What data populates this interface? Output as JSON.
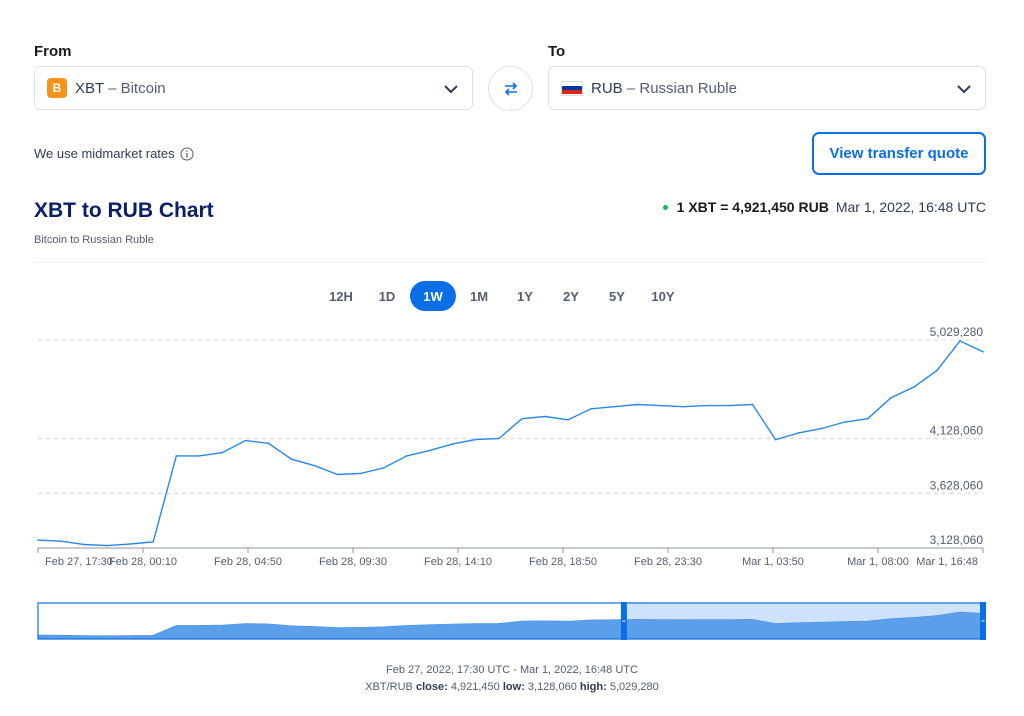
{
  "converter": {
    "from_label": "From",
    "to_label": "To",
    "from": {
      "code": "XBT",
      "name": "Bitcoin",
      "icon": "bitcoin-icon",
      "icon_glyph": "B"
    },
    "to": {
      "code": "RUB",
      "name": "Russian Ruble",
      "icon": "russia-flag-icon"
    },
    "separator": " – "
  },
  "midmarket_text": "We use midmarket rates",
  "quote_button": "View transfer quote",
  "header": {
    "title": "XBT to RUB Chart",
    "subtitle": "Bitcoin to Russian Ruble",
    "rate": "1 XBT = 4,921,450 RUB",
    "rate_time": "Mar 1, 2022, 16:48 UTC"
  },
  "ranges": [
    "12H",
    "1D",
    "1W",
    "1M",
    "1Y",
    "2Y",
    "5Y",
    "10Y"
  ],
  "active_range": "1W",
  "colors": {
    "accent": "#0a6fe6",
    "line": "#2b87ea",
    "live_dot": "#0cb953",
    "coin": "#f7931a"
  },
  "chart_data": {
    "type": "line",
    "series": [
      {
        "x": [
          "Feb 27, 17:30",
          "Feb 27, 20:00",
          "Feb 27, 22:00",
          "Feb 28, 00:10",
          "Feb 28, 02:00",
          "Feb 28, 04:40",
          "Feb 28, 04:50",
          "Feb 28, 07:00",
          "Feb 28, 08:10",
          "Feb 28, 08:40",
          "Feb 28, 09:00",
          "Feb 28, 09:30",
          "Feb 28, 10:30",
          "Feb 28, 11:30",
          "Feb 28, 12:30",
          "Feb 28, 13:30",
          "Feb 28, 14:10",
          "Feb 28, 15:30",
          "Feb 28, 16:30",
          "Feb 28, 17:30",
          "Feb 28, 18:50",
          "Feb 28, 19:30",
          "Feb 28, 20:30",
          "Feb 28, 21:30",
          "Feb 28, 22:30",
          "Feb 28, 23:30",
          "Mar 1, 01:00",
          "Mar 1, 02:30",
          "Mar 1, 03:50",
          "Mar 1, 05:00",
          "Mar 1, 06:30",
          "Mar 1, 07:20",
          "Mar 1, 07:40",
          "Mar 1, 08:00",
          "Mar 1, 09:30",
          "Mar 1, 11:00",
          "Mar 1, 12:30",
          "Mar 1, 14:00",
          "Mar 1, 15:00",
          "Mar 1, 16:00",
          "Mar 1, 16:30",
          "Mar 1, 16:48"
        ],
        "y": [
          3200000,
          3190000,
          3160000,
          3150000,
          3165000,
          3185000,
          3970000,
          3970000,
          4000000,
          4110000,
          4085000,
          3940000,
          3880000,
          3800000,
          3810000,
          3860000,
          3970000,
          4020000,
          4080000,
          4120000,
          4130000,
          4310000,
          4330000,
          4300000,
          4400000,
          4420000,
          4440000,
          4430000,
          4420000,
          4430000,
          4430000,
          4440000,
          4118000,
          4180000,
          4220000,
          4280000,
          4310000,
          4500000,
          4600000,
          4750000,
          5020000,
          4921450
        ]
      }
    ],
    "xticks": [
      "Feb 27, 17:30",
      "Feb 28, 00:10",
      "Feb 28, 04:50",
      "Feb 28, 09:30",
      "Feb 28, 14:10",
      "Feb 28, 18:50",
      "Feb 28, 23:30",
      "Mar 1, 03:50",
      "Mar 1, 08:00",
      "Mar 1, 16:48"
    ],
    "yticks": [
      3128060,
      3628060,
      4128060,
      5029280
    ],
    "ytick_labels": [
      "3,128,060",
      "3,628,060",
      "4,128,060",
      "5,029,280"
    ],
    "ylim": [
      3128060,
      5029280
    ],
    "grid": true,
    "navigator_window": [
      0.62,
      1.0
    ]
  },
  "footer": {
    "range_text": "Feb 27, 2022, 17:30 UTC - Mar 1, 2022, 16:48 UTC",
    "pair": "XBT/RUB",
    "close_label": "close:",
    "close": "4,921,450",
    "low_label": "low:",
    "low": "3,128,060",
    "high_label": "high:",
    "high": "5,029,280"
  }
}
